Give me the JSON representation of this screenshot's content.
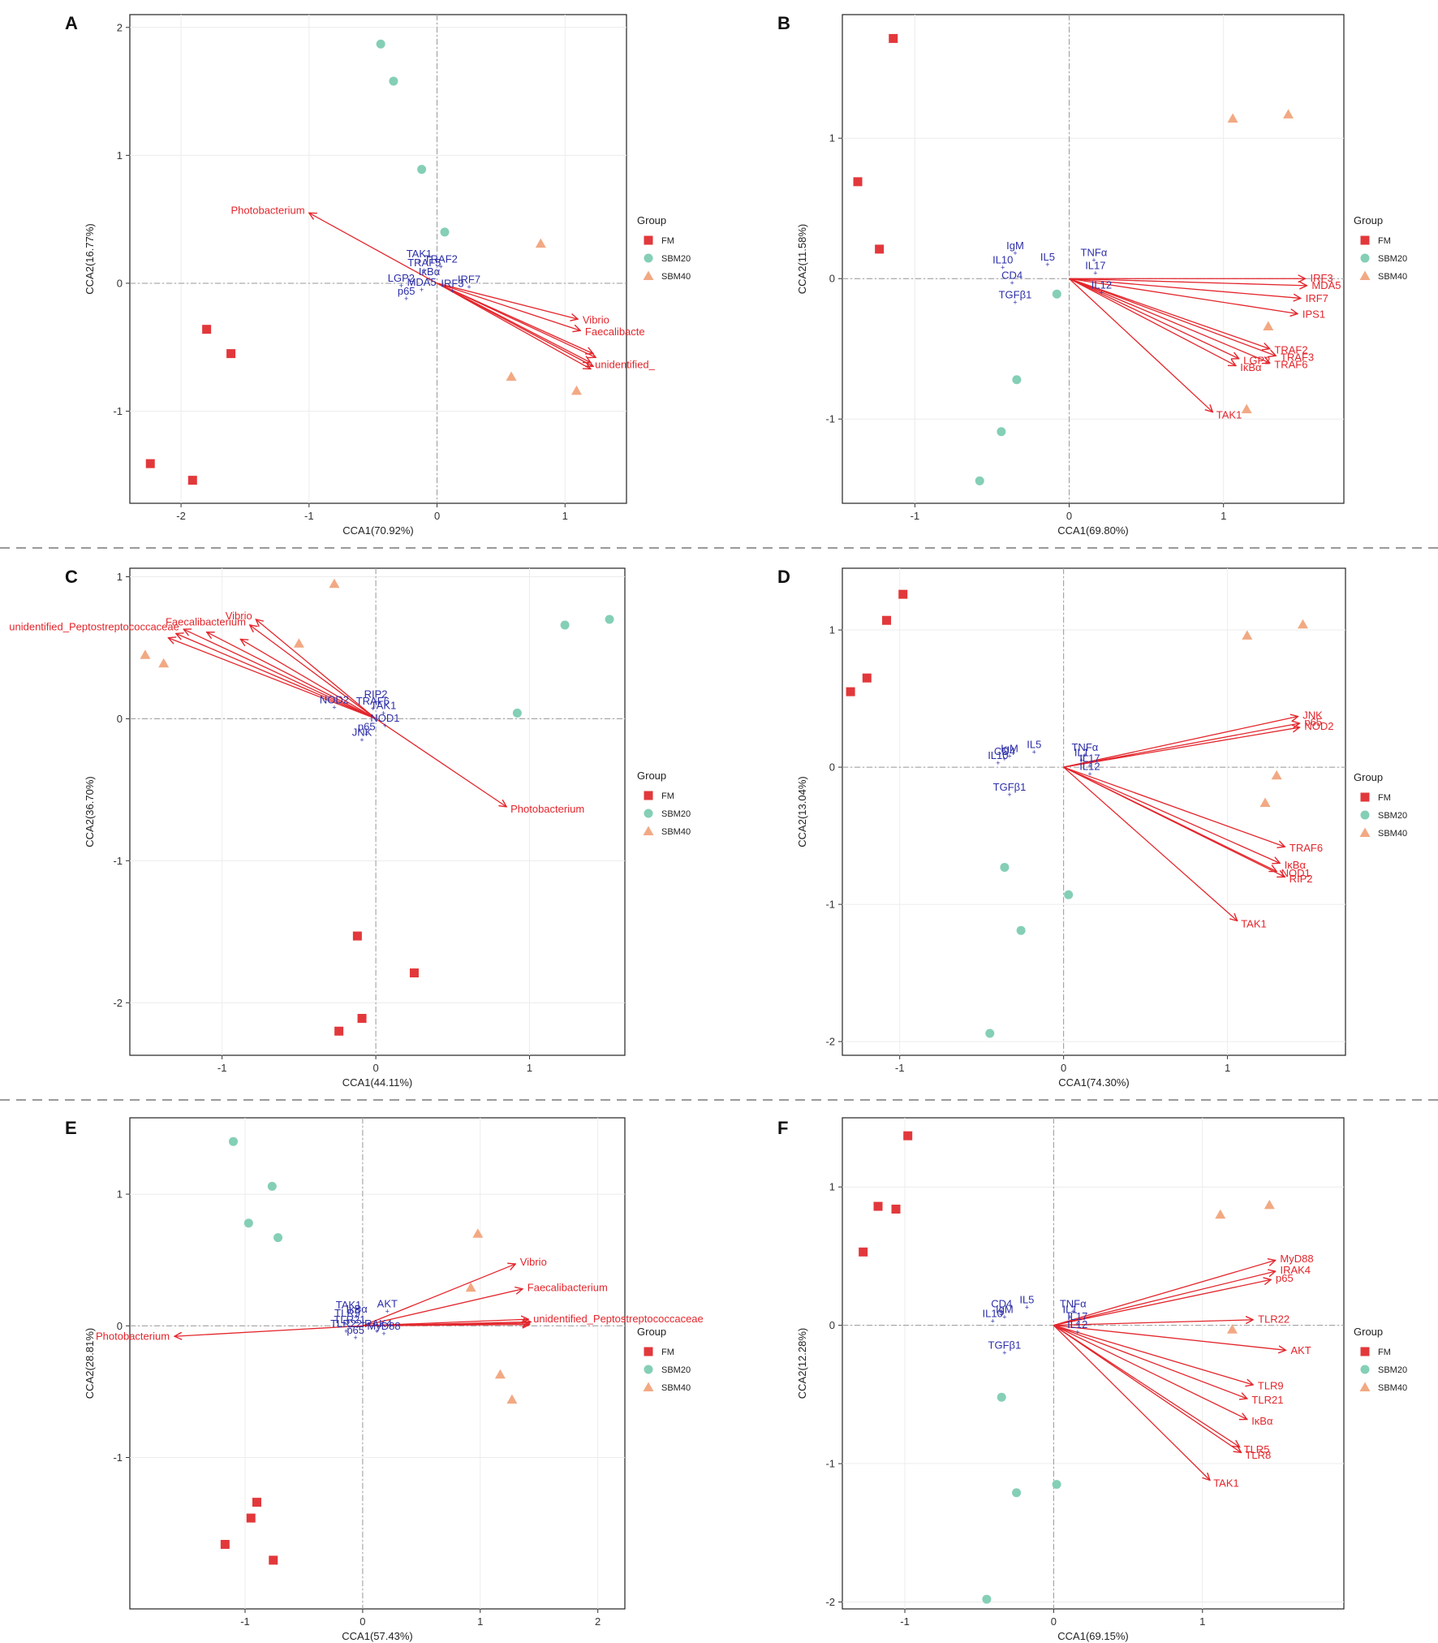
{
  "figure": {
    "legend_title": "Group",
    "groups": [
      {
        "name": "FM",
        "color": "#e2383b",
        "shape": "square"
      },
      {
        "name": "SBM20",
        "color": "#84cfb6",
        "shape": "circle"
      },
      {
        "name": "SBM40",
        "color": "#f2a983",
        "shape": "triangle"
      }
    ],
    "arrow_color": "#e3262c",
    "variable_color": "#2d2fa8"
  },
  "chart_data": [
    {
      "panel": "A",
      "type": "scatter",
      "xlabel": "CCA1(70.92%)",
      "ylabel": "CCA2(16.77%)",
      "xlim": [
        -2.4,
        1.48
      ],
      "ylim": [
        -1.72,
        2.1
      ],
      "xticks": [
        -2,
        -1,
        0,
        1
      ],
      "yticks": [
        -1,
        0,
        1,
        2
      ],
      "points": {
        "FM": [
          [
            -1.8,
            -0.36
          ],
          [
            -1.61,
            -0.55
          ],
          [
            -2.24,
            -1.41
          ],
          [
            -1.91,
            -1.54
          ]
        ],
        "SBM20": [
          [
            -0.44,
            1.87
          ],
          [
            -0.34,
            1.58
          ],
          [
            -0.12,
            0.89
          ],
          [
            0.06,
            0.4
          ]
        ],
        "SBM40": [
          [
            0.81,
            0.31
          ],
          [
            0.58,
            -0.73
          ],
          [
            1.09,
            -0.84
          ]
        ]
      },
      "arrows": [
        {
          "label": "Photobacterium",
          "x": -1.0,
          "y": 0.55
        },
        {
          "label": "Vibrio",
          "x": 1.1,
          "y": -0.28
        },
        {
          "label": "Faecalibacte",
          "x": 1.12,
          "y": -0.37
        },
        {
          "label": "",
          "x": 1.22,
          "y": -0.55
        },
        {
          "label": "",
          "x": 1.24,
          "y": -0.58
        },
        {
          "label": "unidentified_",
          "x": 1.2,
          "y": -0.62
        },
        {
          "label": "",
          "x": 1.22,
          "y": -0.65
        },
        {
          "label": "",
          "x": 1.2,
          "y": -0.67
        }
      ],
      "variables": [
        {
          "label": "TAK1",
          "x": -0.14,
          "y": 0.17
        },
        {
          "label": "TRAF2",
          "x": 0.03,
          "y": 0.13
        },
        {
          "label": "TRAF5",
          "x": -0.1,
          "y": 0.1
        },
        {
          "label": "IκBα",
          "x": -0.06,
          "y": 0.03
        },
        {
          "label": "LGP2",
          "x": -0.28,
          "y": -0.02
        },
        {
          "label": "IRF7",
          "x": 0.25,
          "y": -0.03
        },
        {
          "label": "IRF3",
          "x": 0.12,
          "y": -0.06
        },
        {
          "label": "MDA5",
          "x": -0.12,
          "y": -0.05
        },
        {
          "label": "p65",
          "x": -0.24,
          "y": -0.12
        }
      ]
    },
    {
      "panel": "B",
      "type": "scatter",
      "xlabel": "CCA1(69.80%)",
      "ylabel": "CCA2(11.58%)",
      "xlim": [
        -1.47,
        1.78
      ],
      "ylim": [
        -1.6,
        1.88
      ],
      "xticks": [
        -1,
        0,
        1
      ],
      "yticks": [
        -1,
        0,
        1
      ],
      "points": {
        "FM": [
          [
            -1.14,
            1.71
          ],
          [
            -1.37,
            0.69
          ],
          [
            -1.23,
            0.21
          ]
        ],
        "SBM20": [
          [
            -0.08,
            -0.11
          ],
          [
            -0.34,
            -0.72
          ],
          [
            -0.44,
            -1.09
          ],
          [
            -0.58,
            -1.44
          ]
        ],
        "SBM40": [
          [
            1.06,
            1.14
          ],
          [
            1.42,
            1.17
          ],
          [
            1.29,
            -0.34
          ],
          [
            1.15,
            -0.93
          ]
        ]
      },
      "arrows": [
        {
          "label": "IRF3",
          "x": 1.53,
          "y": 0.0
        },
        {
          "label": "MDA5",
          "x": 1.54,
          "y": -0.05
        },
        {
          "label": "IRF7",
          "x": 1.5,
          "y": -0.14
        },
        {
          "label": "IPS1",
          "x": 1.48,
          "y": -0.25
        },
        {
          "label": "TRAF2",
          "x": 1.3,
          "y": -0.5
        },
        {
          "label": "TRAF3",
          "x": 1.34,
          "y": -0.55
        },
        {
          "label": "LGP2",
          "x": 1.1,
          "y": -0.57
        },
        {
          "label": "IκBα",
          "x": 1.08,
          "y": -0.62
        },
        {
          "label": "TRAF6",
          "x": 1.3,
          "y": -0.6
        },
        {
          "label": "TAK1",
          "x": 0.93,
          "y": -0.95
        }
      ],
      "variables": [
        {
          "label": "IgM",
          "x": -0.35,
          "y": 0.18
        },
        {
          "label": "IL5",
          "x": -0.14,
          "y": 0.1
        },
        {
          "label": "TNFα",
          "x": 0.16,
          "y": 0.13
        },
        {
          "label": "IL10",
          "x": -0.43,
          "y": 0.08
        },
        {
          "label": "IL17",
          "x": 0.17,
          "y": 0.04
        },
        {
          "label": "CD4",
          "x": -0.37,
          "y": -0.03
        },
        {
          "label": "IL12",
          "x": 0.21,
          "y": -0.1
        },
        {
          "label": "TGFβ1",
          "x": -0.35,
          "y": -0.17
        }
      ]
    },
    {
      "panel": "C",
      "type": "scatter",
      "xlabel": "CCA1(44.11%)",
      "ylabel": "CCA2(36.70%)",
      "xlim": [
        -1.6,
        1.62
      ],
      "ylim": [
        -2.37,
        1.06
      ],
      "xticks": [
        -1,
        0,
        1
      ],
      "yticks": [
        -2,
        -1,
        0,
        1
      ],
      "points": {
        "FM": [
          [
            -0.12,
            -1.53
          ],
          [
            0.25,
            -1.79
          ],
          [
            -0.09,
            -2.11
          ],
          [
            -0.24,
            -2.2
          ]
        ],
        "SBM20": [
          [
            1.23,
            0.66
          ],
          [
            1.52,
            0.7
          ],
          [
            0.92,
            0.04
          ]
        ],
        "SBM40": [
          [
            -0.27,
            0.95
          ],
          [
            -1.5,
            0.45
          ],
          [
            -1.38,
            0.39
          ],
          [
            -0.5,
            0.53
          ]
        ]
      },
      "arrows": [
        {
          "label": "Vibrio",
          "x": -0.78,
          "y": 0.7
        },
        {
          "label": "Faecalibacterium",
          "x": -0.82,
          "y": 0.66
        },
        {
          "label": "unidentified_Peptostreptococcaceae",
          "x": -1.25,
          "y": 0.63
        },
        {
          "label": "",
          "x": -1.3,
          "y": 0.6
        },
        {
          "label": "",
          "x": -1.35,
          "y": 0.57
        },
        {
          "label": "",
          "x": -1.1,
          "y": 0.61
        },
        {
          "label": "",
          "x": -0.88,
          "y": 0.56
        },
        {
          "label": "Photobacterium",
          "x": 0.85,
          "y": -0.62
        }
      ],
      "variables": [
        {
          "label": "RIP2",
          "x": 0.0,
          "y": 0.12
        },
        {
          "label": "NOD2",
          "x": -0.27,
          "y": 0.08
        },
        {
          "label": "TRAF6",
          "x": -0.02,
          "y": 0.07
        },
        {
          "label": "TAK1",
          "x": 0.05,
          "y": 0.04
        },
        {
          "label": "NOD1",
          "x": 0.06,
          "y": -0.05
        },
        {
          "label": "p65",
          "x": -0.06,
          "y": -0.11
        },
        {
          "label": "JNK",
          "x": -0.09,
          "y": -0.15
        }
      ]
    },
    {
      "panel": "D",
      "type": "scatter",
      "xlabel": "CCA1(74.30%)",
      "ylabel": "CCA2(13.04%)",
      "xlim": [
        -1.35,
        1.72
      ],
      "ylim": [
        -2.1,
        1.45
      ],
      "xticks": [
        -1,
        0,
        1
      ],
      "yticks": [
        -2,
        -1,
        0,
        1
      ],
      "points": {
        "FM": [
          [
            -0.98,
            1.26
          ],
          [
            -1.08,
            1.07
          ],
          [
            -1.2,
            0.65
          ],
          [
            -1.3,
            0.55
          ]
        ],
        "SBM20": [
          [
            -0.36,
            -0.73
          ],
          [
            0.03,
            -0.93
          ],
          [
            -0.26,
            -1.19
          ],
          [
            -0.45,
            -1.94
          ]
        ],
        "SBM40": [
          [
            1.12,
            0.96
          ],
          [
            1.46,
            1.04
          ],
          [
            1.3,
            -0.06
          ],
          [
            1.23,
            -0.26
          ]
        ]
      },
      "arrows": [
        {
          "label": "JNK",
          "x": 1.43,
          "y": 0.37
        },
        {
          "label": "p65",
          "x": 1.44,
          "y": 0.32
        },
        {
          "label": "NOD2",
          "x": 1.44,
          "y": 0.29
        },
        {
          "label": "TRAF6",
          "x": 1.35,
          "y": -0.58
        },
        {
          "label": "IκBα",
          "x": 1.32,
          "y": -0.7
        },
        {
          "label": "NOD1",
          "x": 1.3,
          "y": -0.76
        },
        {
          "label": "RIP2",
          "x": 1.35,
          "y": -0.8
        },
        {
          "label": "TAK1",
          "x": 1.06,
          "y": -1.12
        }
      ],
      "variables": [
        {
          "label": "IL5",
          "x": -0.18,
          "y": 0.11
        },
        {
          "label": "TNFα",
          "x": 0.13,
          "y": 0.09
        },
        {
          "label": "IgM",
          "x": -0.33,
          "y": 0.08
        },
        {
          "label": "CD4",
          "x": -0.36,
          "y": 0.06
        },
        {
          "label": "IL10",
          "x": -0.4,
          "y": 0.03
        },
        {
          "label": "IL1",
          "x": 0.11,
          "y": 0.05
        },
        {
          "label": "IL17",
          "x": 0.16,
          "y": 0.01
        },
        {
          "label": "IL12",
          "x": 0.16,
          "y": -0.05
        },
        {
          "label": "TGFβ1",
          "x": -0.33,
          "y": -0.2
        }
      ]
    },
    {
      "panel": "E",
      "type": "scatter",
      "xlabel": "CCA1(57.43%)",
      "ylabel": "CCA2(28.81%)",
      "xlim": [
        -1.98,
        2.23
      ],
      "ylim": [
        -2.15,
        1.58
      ],
      "xticks": [
        -1,
        0,
        1,
        2
      ],
      "yticks": [
        -1,
        0,
        1
      ],
      "points": {
        "FM": [
          [
            -0.9,
            -1.34
          ],
          [
            -0.95,
            -1.46
          ],
          [
            -1.17,
            -1.66
          ],
          [
            -0.76,
            -1.78
          ]
        ],
        "SBM20": [
          [
            -1.1,
            1.4
          ],
          [
            -0.77,
            1.06
          ],
          [
            -0.97,
            0.78
          ],
          [
            -0.72,
            0.67
          ]
        ],
        "SBM40": [
          [
            0.98,
            0.7
          ],
          [
            0.92,
            0.29
          ],
          [
            1.17,
            -0.37
          ],
          [
            1.27,
            -0.56
          ]
        ]
      },
      "arrows": [
        {
          "label": "Photobacterium",
          "x": -1.6,
          "y": -0.08
        },
        {
          "label": "Vibrio",
          "x": 1.3,
          "y": 0.47
        },
        {
          "label": "Faecalibacterium",
          "x": 1.36,
          "y": 0.28
        },
        {
          "label": "unidentified_Peptostreptococcaceae",
          "x": 1.41,
          "y": 0.05
        },
        {
          "label": "",
          "x": 1.43,
          "y": 0.03
        },
        {
          "label": "",
          "x": 1.42,
          "y": 0.02
        },
        {
          "label": "",
          "x": 1.42,
          "y": 0.01
        }
      ],
      "variables": [
        {
          "label": "TAK1",
          "x": -0.12,
          "y": 0.1
        },
        {
          "label": "AKT",
          "x": 0.21,
          "y": 0.11
        },
        {
          "label": "IκBα",
          "x": -0.05,
          "y": 0.07
        },
        {
          "label": "TLR9",
          "x": -0.13,
          "y": 0.04
        },
        {
          "label": "TLR21",
          "x": -0.11,
          "y": -0.01
        },
        {
          "label": "TLR22",
          "x": -0.14,
          "y": -0.04
        },
        {
          "label": "IRAK4",
          "x": 0.12,
          "y": -0.04
        },
        {
          "label": "MyD88",
          "x": 0.18,
          "y": -0.06
        },
        {
          "label": "p65",
          "x": -0.06,
          "y": -0.09
        }
      ]
    },
    {
      "panel": "F",
      "type": "scatter",
      "xlabel": "CCA1(69.15%)",
      "ylabel": "CCA2(12.28%)",
      "xlim": [
        -1.42,
        1.95
      ],
      "ylim": [
        -2.05,
        1.5
      ],
      "xticks": [
        -1,
        0,
        1
      ],
      "yticks": [
        -2,
        -1,
        0,
        1
      ],
      "points": {
        "FM": [
          [
            -0.98,
            1.37
          ],
          [
            -1.18,
            0.86
          ],
          [
            -1.06,
            0.84
          ],
          [
            -1.28,
            0.53
          ]
        ],
        "SBM20": [
          [
            -0.35,
            -0.52
          ],
          [
            0.02,
            -1.15
          ],
          [
            -0.25,
            -1.21
          ],
          [
            -0.45,
            -1.98
          ]
        ],
        "SBM40": [
          [
            1.12,
            0.8
          ],
          [
            1.45,
            0.87
          ],
          [
            1.2,
            -0.03
          ]
        ]
      },
      "arrows": [
        {
          "label": "MyD88",
          "x": 1.49,
          "y": 0.47
        },
        {
          "label": "IRAK4",
          "x": 1.49,
          "y": 0.39
        },
        {
          "label": "p65",
          "x": 1.46,
          "y": 0.33
        },
        {
          "label": "TLR22",
          "x": 1.34,
          "y": 0.04
        },
        {
          "label": "AKT",
          "x": 1.56,
          "y": -0.18
        },
        {
          "label": "TLR9",
          "x": 1.34,
          "y": -0.43
        },
        {
          "label": "TLR21",
          "x": 1.3,
          "y": -0.53
        },
        {
          "label": "IκBα",
          "x": 1.3,
          "y": -0.68
        },
        {
          "label": "TLR5",
          "x": 1.25,
          "y": -0.88
        },
        {
          "label": "TLR8",
          "x": 1.26,
          "y": -0.92
        },
        {
          "label": "TAK1",
          "x": 1.05,
          "y": -1.12
        }
      ],
      "variables": [
        {
          "label": "IL5",
          "x": -0.18,
          "y": 0.13
        },
        {
          "label": "TNFα",
          "x": 0.13,
          "y": 0.1
        },
        {
          "label": "CD4",
          "x": -0.35,
          "y": 0.1
        },
        {
          "label": "IgM",
          "x": -0.33,
          "y": 0.06
        },
        {
          "label": "IL10",
          "x": -0.41,
          "y": 0.03
        },
        {
          "label": "IL1",
          "x": 0.11,
          "y": 0.06
        },
        {
          "label": "IL17",
          "x": 0.16,
          "y": 0.01
        },
        {
          "label": "IL12",
          "x": 0.16,
          "y": -0.05
        },
        {
          "label": "TGFβ1",
          "x": -0.33,
          "y": -0.2
        }
      ]
    }
  ]
}
